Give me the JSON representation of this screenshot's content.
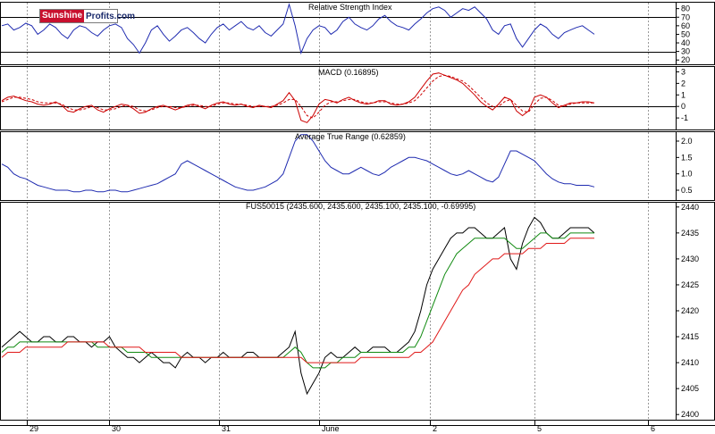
{
  "logo": {
    "part1": "Sunshine",
    "part2": "Profits.com"
  },
  "panels": {
    "rsi": {
      "title": "Relative Strength Index",
      "ticks": [
        20,
        30,
        40,
        50,
        60,
        70,
        80
      ]
    },
    "macd": {
      "title": "MACD (0.16895)",
      "ticks": [
        -1,
        0,
        1,
        2,
        3
      ]
    },
    "atr": {
      "title": "Average True Range (0.62859)",
      "ticks": [
        0.5,
        1.0,
        1.5,
        2.0
      ]
    },
    "price": {
      "title": "FUS50015 (2435.600, 2435.600, 2435.100, 2435.100, -0.69995)",
      "ticks": [
        2400,
        2405,
        2410,
        2415,
        2420,
        2425,
        2430,
        2435,
        2440
      ]
    }
  },
  "x_axis": {
    "labels": [
      "29",
      "30",
      "31",
      "June",
      "2",
      "5",
      "6"
    ]
  },
  "chart_data": [
    {
      "type": "line",
      "title": "Relative Strength Index",
      "ylim": [
        15,
        88
      ],
      "reference_lines": [
        30,
        70
      ],
      "series": [
        {
          "color": "#1f2bb0",
          "values": [
            60,
            62,
            55,
            58,
            63,
            60,
            50,
            55,
            62,
            58,
            50,
            45,
            55,
            60,
            58,
            52,
            48,
            55,
            60,
            62,
            58,
            45,
            38,
            28,
            40,
            55,
            60,
            50,
            42,
            48,
            55,
            58,
            52,
            45,
            40,
            50,
            58,
            62,
            55,
            60,
            65,
            58,
            55,
            60,
            52,
            48,
            55,
            62,
            85,
            60,
            28,
            45,
            55,
            60,
            58,
            50,
            55,
            65,
            70,
            62,
            58,
            55,
            60,
            68,
            72,
            65,
            60,
            58,
            55,
            62,
            68,
            75,
            80,
            82,
            78,
            70,
            75,
            80,
            78,
            82,
            75,
            68,
            55,
            50,
            60,
            62,
            45,
            35,
            45,
            55,
            62,
            58,
            50,
            45,
            52,
            55,
            58,
            60,
            55,
            50
          ]
        }
      ]
    },
    {
      "type": "line",
      "title": "MACD (0.16895)",
      "ylim": [
        -2,
        3.5
      ],
      "reference_lines": [
        0
      ],
      "series": [
        {
          "color": "#cc0000",
          "values": [
            0.5,
            0.8,
            0.9,
            0.7,
            0.5,
            0.4,
            0.2,
            0.1,
            0.2,
            0.4,
            0.1,
            -0.4,
            -0.5,
            -0.2,
            0.0,
            0.1,
            -0.3,
            -0.5,
            -0.2,
            0.0,
            0.2,
            0.1,
            -0.2,
            -0.6,
            -0.5,
            -0.2,
            0.0,
            0.1,
            -0.1,
            -0.3,
            -0.1,
            0.1,
            0.2,
            0.0,
            -0.2,
            0.1,
            0.3,
            0.4,
            0.2,
            0.1,
            0.2,
            0.0,
            -0.1,
            0.1,
            0.0,
            -0.1,
            0.2,
            0.5,
            1.2,
            0.5,
            -1.2,
            -1.4,
            -0.8,
            0.2,
            0.6,
            0.5,
            0.3,
            0.6,
            0.8,
            0.5,
            0.3,
            0.2,
            0.3,
            0.5,
            0.5,
            0.2,
            0.1,
            0.2,
            0.4,
            0.8,
            1.5,
            2.2,
            2.8,
            2.9,
            2.7,
            2.5,
            2.3,
            2.0,
            1.5,
            1.0,
            0.4,
            0.0,
            -0.3,
            0.2,
            0.8,
            0.6,
            -0.4,
            -0.8,
            -0.4,
            0.8,
            1.0,
            0.8,
            0.3,
            -0.1,
            0.1,
            0.3,
            0.3,
            0.4,
            0.4,
            0.3
          ]
        },
        {
          "color": "#cc0000",
          "dashed": true,
          "values": [
            0.4,
            0.6,
            0.8,
            0.8,
            0.7,
            0.6,
            0.4,
            0.3,
            0.3,
            0.3,
            0.2,
            -0.1,
            -0.3,
            -0.3,
            -0.2,
            0.0,
            -0.1,
            -0.3,
            -0.3,
            -0.2,
            0.0,
            0.1,
            0.0,
            -0.3,
            -0.4,
            -0.3,
            -0.1,
            0.0,
            0.0,
            -0.1,
            -0.1,
            0.0,
            0.1,
            0.1,
            0.0,
            0.0,
            0.2,
            0.3,
            0.3,
            0.2,
            0.2,
            0.1,
            0.0,
            0.0,
            0.0,
            0.0,
            0.1,
            0.3,
            0.6,
            0.6,
            0.0,
            -0.8,
            -1.0,
            -0.5,
            0.1,
            0.4,
            0.4,
            0.5,
            0.6,
            0.6,
            0.4,
            0.3,
            0.3,
            0.4,
            0.4,
            0.3,
            0.2,
            0.2,
            0.3,
            0.5,
            1.0,
            1.6,
            2.2,
            2.6,
            2.7,
            2.6,
            2.4,
            2.2,
            1.8,
            1.3,
            0.8,
            0.3,
            0.0,
            0.0,
            0.4,
            0.6,
            0.1,
            -0.4,
            -0.5,
            0.2,
            0.7,
            0.8,
            0.5,
            0.1,
            0.0,
            0.2,
            0.3,
            0.3,
            0.3,
            0.3
          ]
        }
      ]
    },
    {
      "type": "line",
      "title": "Average True Range (0.62859)",
      "ylim": [
        0.2,
        2.3
      ],
      "series": [
        {
          "color": "#1f2bb0",
          "values": [
            1.3,
            1.2,
            1.0,
            0.9,
            0.85,
            0.75,
            0.65,
            0.6,
            0.55,
            0.5,
            0.5,
            0.5,
            0.45,
            0.45,
            0.5,
            0.5,
            0.45,
            0.45,
            0.5,
            0.5,
            0.45,
            0.45,
            0.5,
            0.55,
            0.6,
            0.65,
            0.7,
            0.8,
            0.9,
            1.0,
            1.3,
            1.4,
            1.3,
            1.2,
            1.1,
            1.0,
            0.9,
            0.8,
            0.7,
            0.6,
            0.55,
            0.5,
            0.5,
            0.55,
            0.6,
            0.7,
            0.8,
            1.0,
            1.5,
            2.0,
            2.2,
            2.2,
            2.0,
            1.7,
            1.4,
            1.2,
            1.1,
            1.0,
            1.0,
            1.1,
            1.2,
            1.1,
            1.0,
            0.95,
            1.05,
            1.2,
            1.3,
            1.4,
            1.5,
            1.5,
            1.45,
            1.4,
            1.3,
            1.2,
            1.1,
            1.0,
            0.95,
            1.0,
            1.1,
            1.0,
            0.9,
            0.8,
            0.75,
            0.9,
            1.3,
            1.7,
            1.7,
            1.6,
            1.5,
            1.4,
            1.2,
            1.0,
            0.85,
            0.75,
            0.7,
            0.7,
            0.65,
            0.65,
            0.65,
            0.6
          ]
        }
      ]
    },
    {
      "type": "line",
      "title": "FUS50015 (2435.600, 2435.600, 2435.100, 2435.100, -0.69995)",
      "ylim": [
        2399,
        2441
      ],
      "series": [
        {
          "color": "#000000",
          "values": [
            2413,
            2414,
            2415,
            2416,
            2415,
            2414,
            2414,
            2415,
            2415,
            2414,
            2414,
            2415,
            2415,
            2414,
            2414,
            2413,
            2414,
            2414,
            2415,
            2413,
            2412,
            2411,
            2411,
            2410,
            2411,
            2412,
            2411,
            2410,
            2410,
            2409,
            2411,
            2412,
            2411,
            2411,
            2410,
            2411,
            2411,
            2412,
            2411,
            2411,
            2411,
            2412,
            2412,
            2411,
            2411,
            2411,
            2411,
            2412,
            2413,
            2416,
            2408,
            2404,
            2406,
            2408,
            2411,
            2412,
            2411,
            2411,
            2412,
            2413,
            2412,
            2412,
            2413,
            2413,
            2413,
            2412,
            2412,
            2413,
            2414,
            2416,
            2420,
            2425,
            2428,
            2430,
            2432,
            2434,
            2435,
            2435,
            2436,
            2436,
            2435,
            2434,
            2434,
            2435,
            2436,
            2430,
            2428,
            2433,
            2436,
            2438,
            2437,
            2435,
            2434,
            2434,
            2435,
            2436,
            2436,
            2436,
            2436,
            2435
          ]
        },
        {
          "color": "#108a10",
          "values": [
            2412,
            2413,
            2413,
            2414,
            2414,
            2414,
            2414,
            2414,
            2414,
            2414,
            2414,
            2414,
            2414,
            2414,
            2414,
            2414,
            2413,
            2413,
            2413,
            2413,
            2413,
            2412,
            2412,
            2412,
            2412,
            2411,
            2411,
            2411,
            2411,
            2411,
            2411,
            2411,
            2411,
            2411,
            2411,
            2411,
            2411,
            2411,
            2411,
            2411,
            2411,
            2411,
            2411,
            2411,
            2411,
            2411,
            2411,
            2411,
            2412,
            2413,
            2412,
            2410,
            2409,
            2409,
            2409,
            2410,
            2410,
            2411,
            2411,
            2411,
            2412,
            2412,
            2412,
            2412,
            2412,
            2412,
            2412,
            2412,
            2413,
            2413,
            2415,
            2418,
            2421,
            2424,
            2427,
            2429,
            2431,
            2432,
            2433,
            2434,
            2434,
            2434,
            2434,
            2434,
            2434,
            2433,
            2432,
            2432,
            2433,
            2434,
            2435,
            2435,
            2434,
            2434,
            2434,
            2435,
            2435,
            2435,
            2435,
            2435
          ]
        },
        {
          "color": "#e01818",
          "values": [
            2411,
            2412,
            2412,
            2412,
            2413,
            2413,
            2413,
            2413,
            2413,
            2413,
            2413,
            2414,
            2414,
            2414,
            2414,
            2414,
            2414,
            2414,
            2413,
            2413,
            2413,
            2413,
            2413,
            2413,
            2412,
            2412,
            2412,
            2412,
            2412,
            2412,
            2411,
            2411,
            2411,
            2411,
            2411,
            2411,
            2411,
            2411,
            2411,
            2411,
            2411,
            2411,
            2411,
            2411,
            2411,
            2411,
            2411,
            2411,
            2411,
            2411,
            2411,
            2410,
            2410,
            2410,
            2410,
            2410,
            2410,
            2410,
            2410,
            2410,
            2411,
            2411,
            2411,
            2411,
            2411,
            2411,
            2411,
            2411,
            2411,
            2412,
            2412,
            2413,
            2414,
            2416,
            2418,
            2420,
            2422,
            2424,
            2425,
            2427,
            2428,
            2429,
            2430,
            2430,
            2431,
            2431,
            2431,
            2431,
            2432,
            2432,
            2432,
            2433,
            2433,
            2433,
            2433,
            2434,
            2434,
            2434,
            2434,
            2434
          ]
        }
      ]
    }
  ]
}
